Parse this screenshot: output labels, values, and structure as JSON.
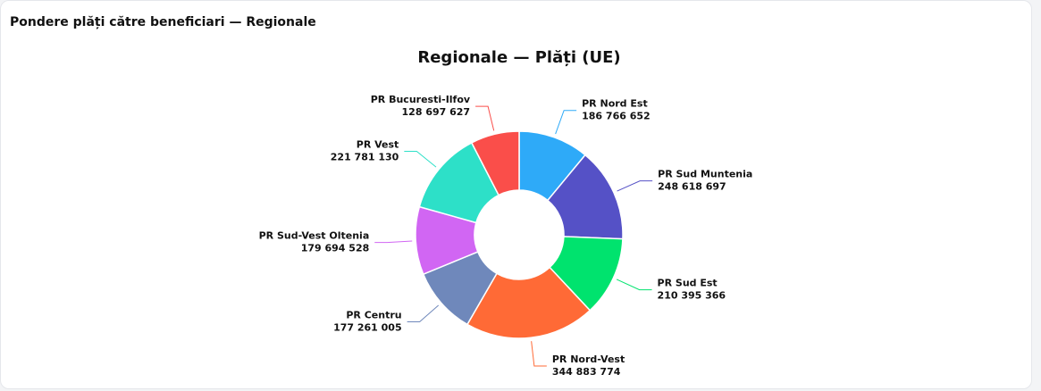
{
  "card": {
    "title": "Pondere plăți către beneficiari — Regionale"
  },
  "chart_data": {
    "type": "donut",
    "title": "Regionale — Plăți (UE)",
    "categories": [
      "PR Nord Est",
      "PR Sud Muntenia",
      "PR Sud Est",
      "PR Nord-Vest",
      "PR Centru",
      "PR Sud-Vest Oltenia",
      "PR Vest",
      "PR Bucuresti-Ilfov"
    ],
    "values": [
      186766652,
      248618697,
      210395366,
      344883774,
      177261005,
      179694528,
      221781130,
      128697627
    ],
    "value_labels": [
      "186 766 652",
      "248 618 697",
      "210 395 366",
      "344 883 774",
      "177 261 005",
      "179 694 528",
      "221 781 130",
      "128 697 627"
    ],
    "colors": [
      "#2eaaf8",
      "#5551c6",
      "#00e36e",
      "#ff6a36",
      "#6f88bb",
      "#d166f3",
      "#2de0c8",
      "#fa4e4a"
    ]
  }
}
